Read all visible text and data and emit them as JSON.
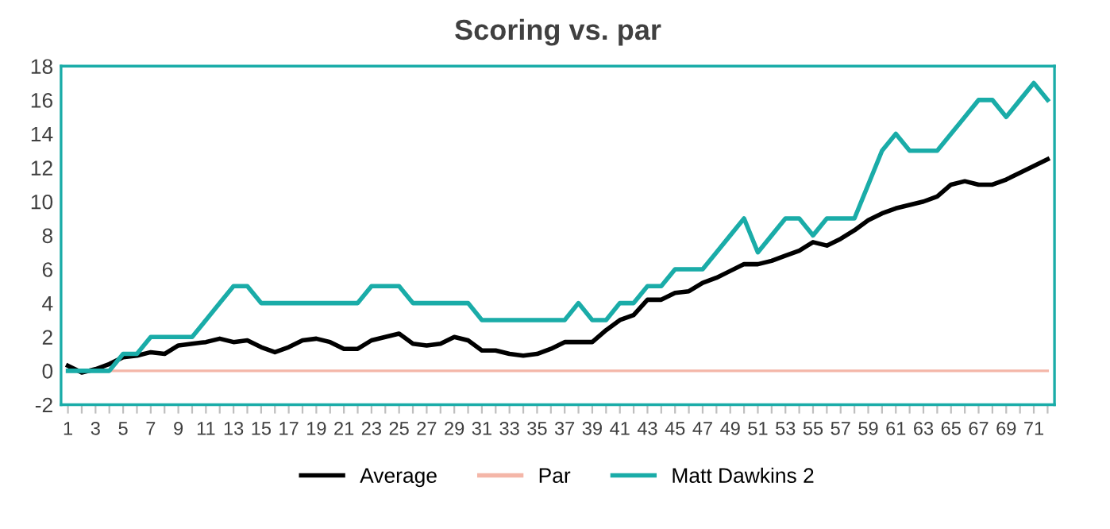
{
  "chart_data": {
    "type": "line",
    "title": "Scoring vs. par",
    "categories": [
      "1",
      null,
      "3",
      null,
      "5",
      null,
      "7",
      null,
      "9",
      null,
      "11",
      null,
      "13",
      null,
      "15",
      null,
      "17",
      null,
      "19",
      null,
      "21",
      null,
      "23",
      null,
      "25",
      null,
      "27",
      null,
      "29",
      null,
      "31",
      null,
      "33",
      null,
      "35",
      null,
      "37",
      null,
      "39",
      null,
      "41",
      null,
      "43",
      null,
      "45",
      null,
      "47",
      null,
      "49",
      null,
      "51",
      null,
      "53",
      null,
      "55",
      null,
      "57",
      null,
      "59",
      null,
      "61",
      null,
      "63",
      null,
      "65",
      null,
      "67",
      null,
      "69",
      null,
      "71",
      null
    ],
    "series": [
      {
        "name": "Average",
        "color": "#000000",
        "values": [
          0.3,
          -0.1,
          0.1,
          0.4,
          0.8,
          0.9,
          1.1,
          1.0,
          1.5,
          1.6,
          1.7,
          1.9,
          1.7,
          1.8,
          1.4,
          1.1,
          1.4,
          1.8,
          1.9,
          1.7,
          1.3,
          1.3,
          1.8,
          2.0,
          2.2,
          1.6,
          1.5,
          1.6,
          2.0,
          1.8,
          1.2,
          1.2,
          1.0,
          0.9,
          1.0,
          1.3,
          1.7,
          1.7,
          1.7,
          2.4,
          3.0,
          3.3,
          4.2,
          4.2,
          4.6,
          4.7,
          5.2,
          5.5,
          5.9,
          6.3,
          6.3,
          6.5,
          6.8,
          7.1,
          7.6,
          7.4,
          7.8,
          8.3,
          8.9,
          9.3,
          9.6,
          9.8,
          10.0,
          10.3,
          11.0,
          11.2,
          11.0,
          11.0,
          11.3,
          11.7,
          12.1,
          12.5
        ]
      },
      {
        "name": "Par",
        "color": "#f4b6a8",
        "values": [
          null,
          null,
          0,
          0,
          0,
          0,
          0,
          0,
          0,
          0,
          0,
          0,
          0,
          0,
          0,
          0,
          0,
          0,
          0,
          0,
          0,
          0,
          0,
          0,
          0,
          0,
          0,
          0,
          0,
          0,
          0,
          0,
          0,
          0,
          0,
          0,
          0,
          0,
          0,
          0,
          0,
          0,
          0,
          0,
          0,
          0,
          0,
          0,
          0,
          0,
          0,
          0,
          0,
          0,
          0,
          0,
          0,
          0,
          0,
          0,
          0,
          0,
          0,
          0,
          0,
          0,
          0,
          0,
          0,
          0,
          0,
          0
        ]
      },
      {
        "name": "Matt Dawkins 2",
        "color": "#1aaca8",
        "values": [
          0,
          0,
          0,
          0,
          1,
          1,
          2,
          2,
          2,
          2,
          3,
          4,
          5,
          5,
          4,
          4,
          4,
          4,
          4,
          4,
          4,
          4,
          5,
          5,
          5,
          4,
          4,
          4,
          4,
          4,
          3,
          3,
          3,
          3,
          3,
          3,
          3,
          4,
          3,
          3,
          4,
          4,
          5,
          5,
          6,
          6,
          6,
          7,
          8,
          9,
          7,
          8,
          9,
          9,
          8,
          9,
          9,
          9,
          11,
          13,
          14,
          13,
          13,
          13,
          14,
          15,
          16,
          16,
          15,
          16,
          17,
          16
        ]
      }
    ],
    "ylim": [
      -2,
      18
    ],
    "yticks": [
      -2,
      0,
      2,
      4,
      6,
      8,
      10,
      12,
      14,
      16,
      18
    ],
    "grid": false,
    "legend": "bottom",
    "marker": "none",
    "line_style": "solid"
  }
}
